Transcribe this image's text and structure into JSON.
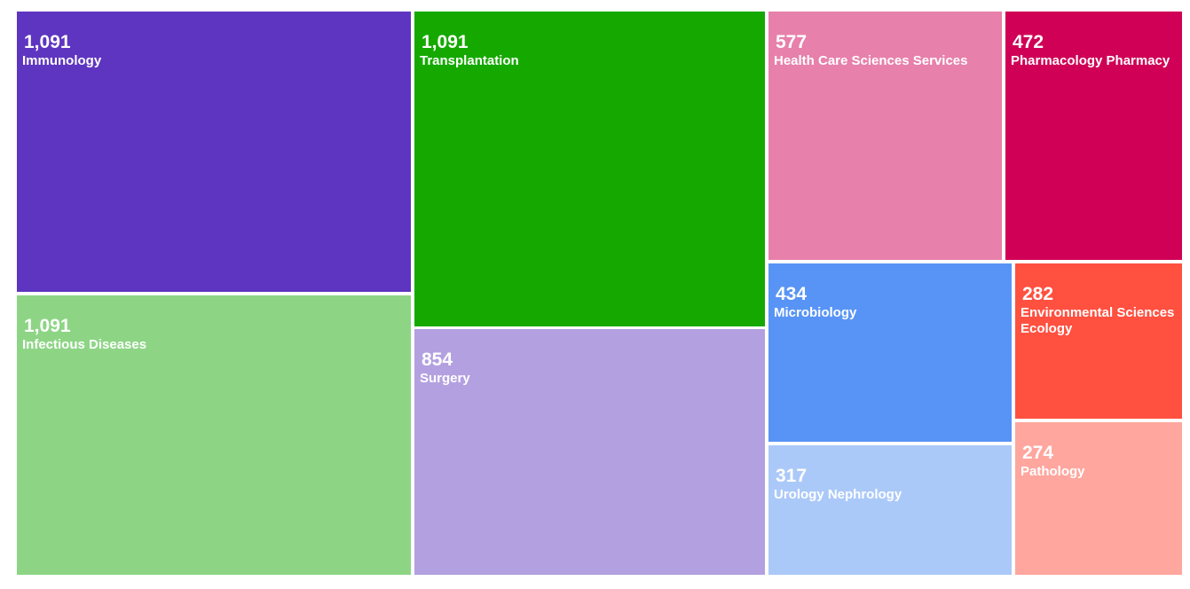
{
  "chart_data": {
    "type": "treemap",
    "items": [
      {
        "name": "Immunology",
        "value": 1091,
        "value_label": "1,091",
        "color": "#5e35c0"
      },
      {
        "name": "Infectious Diseases",
        "value": 1091,
        "value_label": "1,091",
        "color": "#8dd585"
      },
      {
        "name": "Transplantation",
        "value": 1091,
        "value_label": "1,091",
        "color": "#15a900"
      },
      {
        "name": "Surgery",
        "value": 854,
        "value_label": "854",
        "color": "#b3a0e0"
      },
      {
        "name": "Health Care Sciences Services",
        "value": 577,
        "value_label": "577",
        "color": "#e780ab"
      },
      {
        "name": "Pharmacology Pharmacy",
        "value": 472,
        "value_label": "472",
        "color": "#cf0056"
      },
      {
        "name": "Microbiology",
        "value": 434,
        "value_label": "434",
        "color": "#5894f5"
      },
      {
        "name": "Urology Nephrology",
        "value": 317,
        "value_label": "317",
        "color": "#abc9f8"
      },
      {
        "name": "Environmental Sciences Ecology",
        "value": 282,
        "value_label": "282",
        "color": "#ff5040"
      },
      {
        "name": "Pathology",
        "value": 274,
        "value_label": "274",
        "color": "#ffa69e"
      }
    ]
  }
}
